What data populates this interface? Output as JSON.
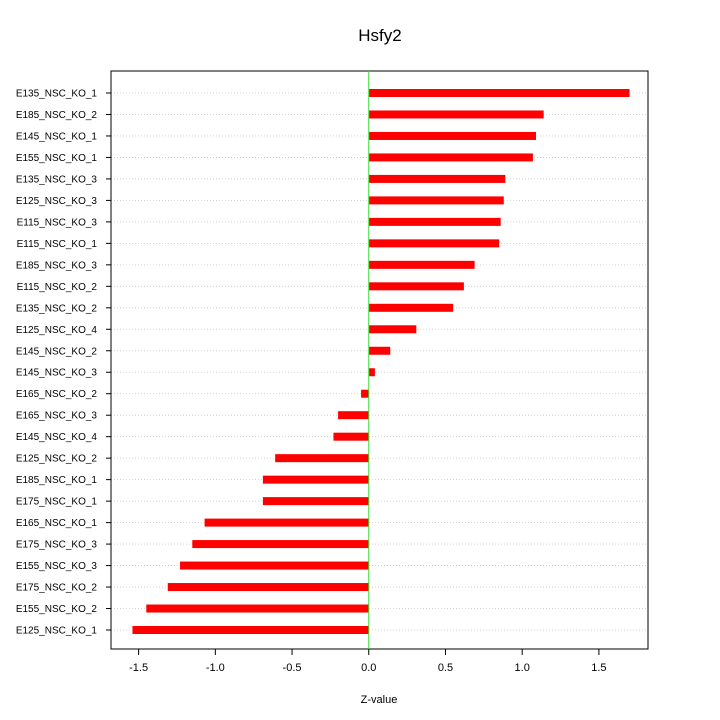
{
  "chart_data": {
    "type": "bar",
    "orientation": "horizontal",
    "title": "Hsfy2",
    "xlabel": "Z-value",
    "ylabel": "",
    "xlim": [
      -1.68,
      1.82
    ],
    "xticks": [
      -1.5,
      -1.0,
      -0.5,
      0.0,
      0.5,
      1.0,
      1.5
    ],
    "xtick_labels": [
      "-1.5",
      "-1.0",
      "-0.5",
      "0.0",
      "0.5",
      "1.0",
      "1.5"
    ],
    "grid": "horizontal dotted",
    "bar_color": "#ff0000",
    "zero_line_color": "#33dd33",
    "categories": [
      "E135_NSC_KO_1",
      "E185_NSC_KO_2",
      "E145_NSC_KO_1",
      "E155_NSC_KO_1",
      "E135_NSC_KO_3",
      "E125_NSC_KO_3",
      "E115_NSC_KO_3",
      "E115_NSC_KO_1",
      "E185_NSC_KO_3",
      "E115_NSC_KO_2",
      "E135_NSC_KO_2",
      "E125_NSC_KO_4",
      "E145_NSC_KO_2",
      "E145_NSC_KO_3",
      "E165_NSC_KO_2",
      "E165_NSC_KO_3",
      "E145_NSC_KO_4",
      "E125_NSC_KO_2",
      "E185_NSC_KO_1",
      "E175_NSC_KO_1",
      "E165_NSC_KO_1",
      "E175_NSC_KO_3",
      "E155_NSC_KO_3",
      "E175_NSC_KO_2",
      "E155_NSC_KO_2",
      "E125_NSC_KO_1"
    ],
    "values": [
      1.7,
      1.14,
      1.09,
      1.07,
      0.89,
      0.88,
      0.86,
      0.85,
      0.69,
      0.62,
      0.55,
      0.31,
      0.14,
      0.04,
      -0.05,
      -0.2,
      -0.23,
      -0.61,
      -0.69,
      -0.69,
      -1.07,
      -1.15,
      -1.23,
      -1.31,
      -1.45,
      -1.54
    ]
  }
}
